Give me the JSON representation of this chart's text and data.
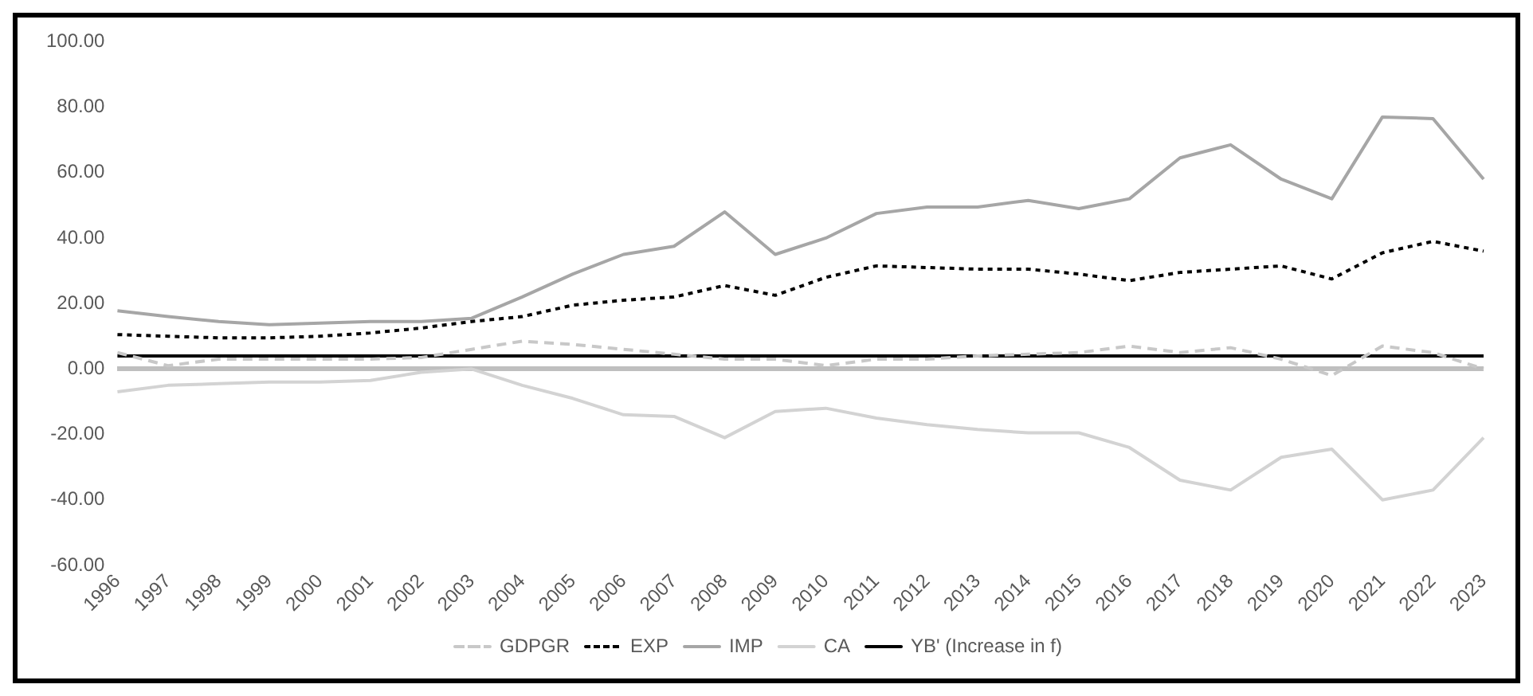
{
  "chart_data": {
    "type": "line",
    "categories": [
      "1996",
      "1997",
      "1998",
      "1999",
      "2000",
      "2001",
      "2002",
      "2003",
      "2004",
      "2005",
      "2006",
      "2007",
      "2008",
      "2009",
      "2010",
      "2011",
      "2012",
      "2013",
      "2014",
      "2015",
      "2016",
      "2017",
      "2018",
      "2019",
      "2020",
      "2021",
      "2022",
      "2023"
    ],
    "series": [
      {
        "name": "GDPGR",
        "color": "#c8c8c8",
        "line_style": "dashed",
        "values": [
          5,
          1,
          3,
          3,
          3,
          3,
          3.5,
          6,
          8.5,
          7.5,
          6,
          4.5,
          3,
          3,
          1,
          3,
          3,
          4,
          4.5,
          5,
          7,
          5,
          6.5,
          3,
          -2,
          7,
          5,
          0
        ]
      },
      {
        "name": "EXP",
        "color": "#000000",
        "line_style": "dotted",
        "values": [
          10.5,
          10,
          9.5,
          9.5,
          10,
          11,
          12.5,
          14.5,
          16,
          19.5,
          21,
          22,
          25.5,
          22.5,
          28,
          31.5,
          31,
          30.5,
          30.5,
          29,
          27,
          29.5,
          30.5,
          31.5,
          27.5,
          35.5,
          39,
          36
        ]
      },
      {
        "name": "IMP",
        "color": "#a6a6a6",
        "line_style": "solid",
        "values": [
          17.8,
          16,
          14.5,
          13.5,
          14,
          14.5,
          14.5,
          15.5,
          22,
          29,
          35,
          37.5,
          48,
          35,
          40,
          47.5,
          49.5,
          49.5,
          51.5,
          49,
          52,
          64.5,
          68.5,
          58,
          52,
          77,
          76.5,
          58
        ]
      },
      {
        "name": "CA",
        "color": "#d3d3d3",
        "line_style": "solid",
        "values": [
          -7,
          -5,
          -4.5,
          -4,
          -4,
          -3.5,
          -1,
          0,
          -5,
          -9,
          -14,
          -14.5,
          -21,
          -13,
          -12,
          -15,
          -17,
          -18.5,
          -19.5,
          -19.5,
          -24,
          -34,
          -37,
          -27,
          -24.5,
          -40,
          -37,
          -21
        ]
      },
      {
        "name": "YB' (Increase in f)",
        "color": "#000000",
        "line_style": "solid",
        "values": [
          4,
          4,
          4,
          4,
          4,
          4,
          4,
          4,
          4,
          4,
          4,
          4,
          4,
          4,
          4,
          4,
          4,
          4,
          4,
          4,
          4,
          4,
          4,
          4,
          4,
          4,
          4,
          4
        ]
      }
    ],
    "ylim": [
      -60,
      100
    ],
    "yticks": [
      {
        "value": 100,
        "label": "100.00"
      },
      {
        "value": 80,
        "label": "80.00"
      },
      {
        "value": 60,
        "label": "60.00"
      },
      {
        "value": 40,
        "label": "40.00"
      },
      {
        "value": 20,
        "label": "20.00"
      },
      {
        "value": 0,
        "label": "0.00"
      },
      {
        "value": -20,
        "label": "-20.00"
      },
      {
        "value": -40,
        "label": "-40.00"
      },
      {
        "value": -60,
        "label": "-60.00"
      }
    ],
    "grid": false,
    "legend": "bottom",
    "marker": "none"
  }
}
